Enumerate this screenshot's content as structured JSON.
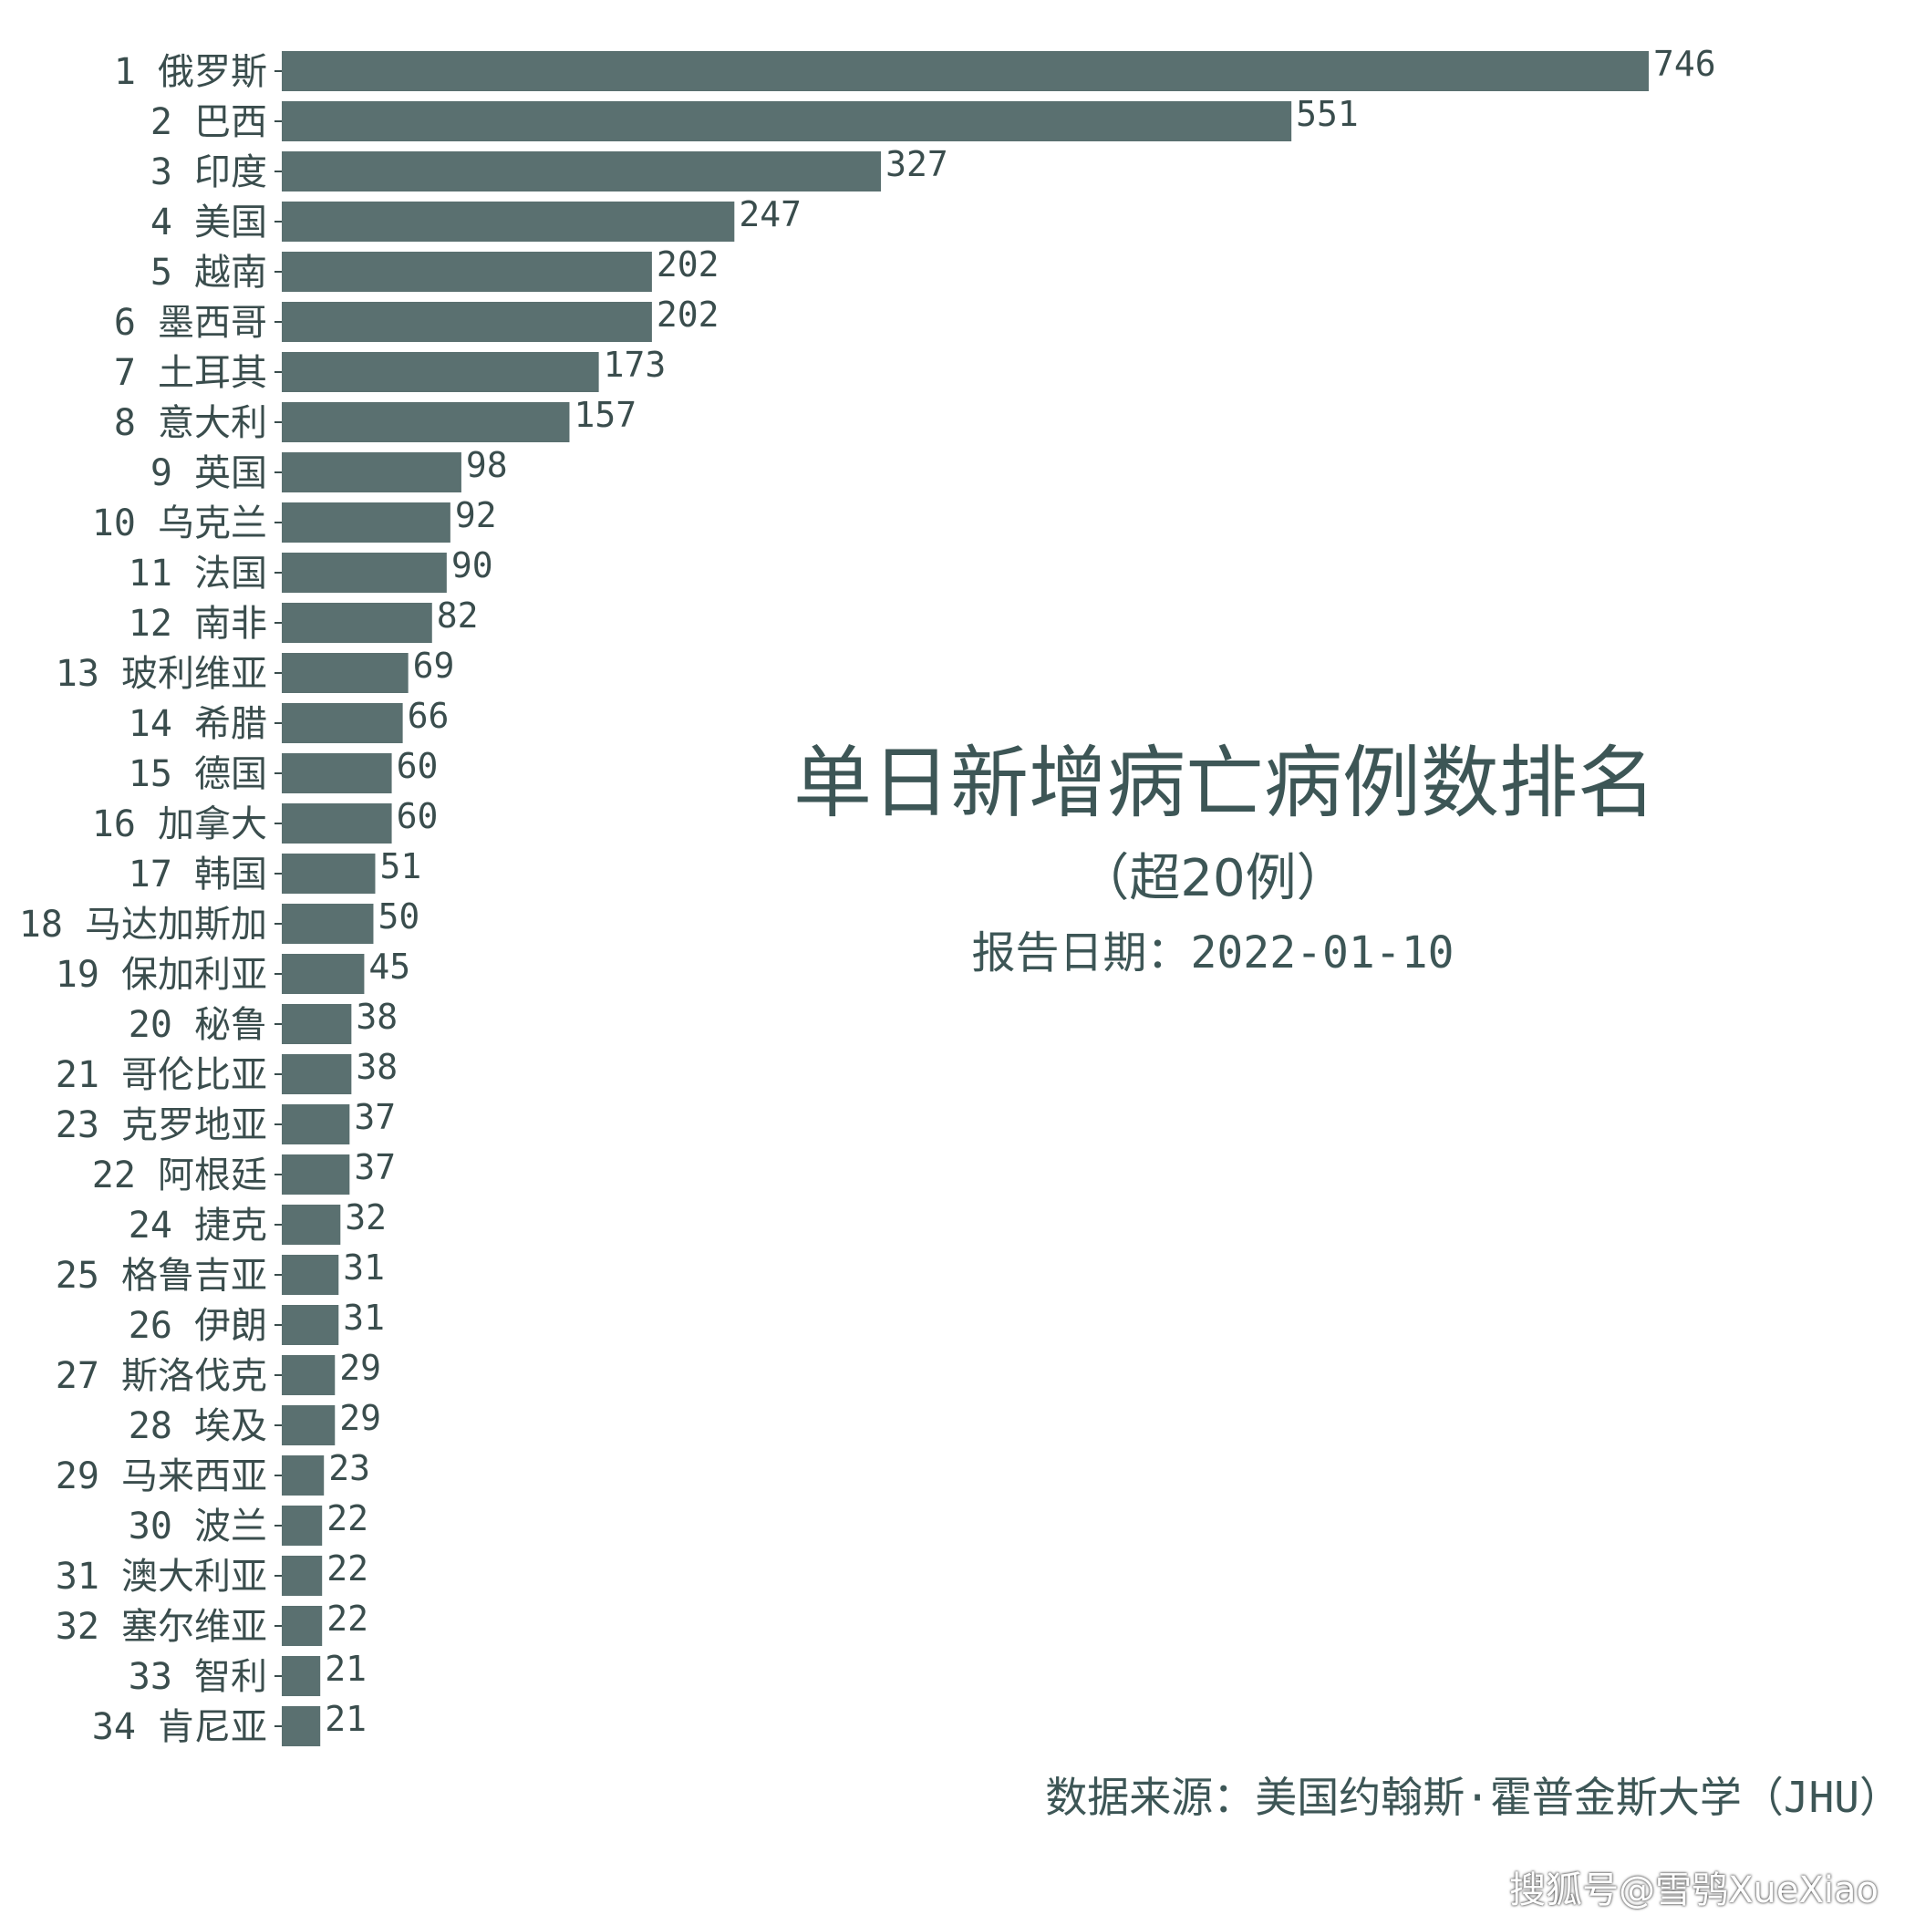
{
  "chart_data": {
    "type": "bar",
    "orientation": "horizontal",
    "title": "单日新增病亡病例数排名",
    "subtitle": "（超20例）",
    "report_date": "报告日期：2022-01-10",
    "source": "数据来源：美国约翰斯·霍普金斯大学（JHU）",
    "categories": [
      "1 俄罗斯",
      "2 巴西",
      "3 印度",
      "4 美国",
      "5 越南",
      "6 墨西哥",
      "7 土耳其",
      "8 意大利",
      "9 英国",
      "10 乌克兰",
      "11 法国",
      "12 南非",
      "13 玻利维亚",
      "14 希腊",
      "15 德国",
      "16 加拿大",
      "17 韩国",
      "18 马达加斯加",
      "19 保加利亚",
      "20 秘鲁",
      "21 哥伦比亚",
      "23 克罗地亚",
      "22 阿根廷",
      "24 捷克",
      "25 格鲁吉亚",
      "26 伊朗",
      "27 斯洛伐克",
      "28 埃及",
      "29 马来西亚",
      "30 波兰",
      "31 澳大利亚",
      "32 塞尔维亚",
      "33 智利",
      "34 肯尼亚"
    ],
    "values": [
      746,
      551,
      327,
      247,
      202,
      202,
      173,
      157,
      98,
      92,
      90,
      82,
      69,
      66,
      60,
      60,
      51,
      50,
      45,
      38,
      38,
      37,
      37,
      32,
      31,
      31,
      29,
      29,
      23,
      22,
      22,
      22,
      21,
      21
    ],
    "xlim": [
      0,
      746
    ],
    "grid": false,
    "bar_color": "#5a7070"
  },
  "watermark": "搜狐号@雪鸮XueXiao"
}
